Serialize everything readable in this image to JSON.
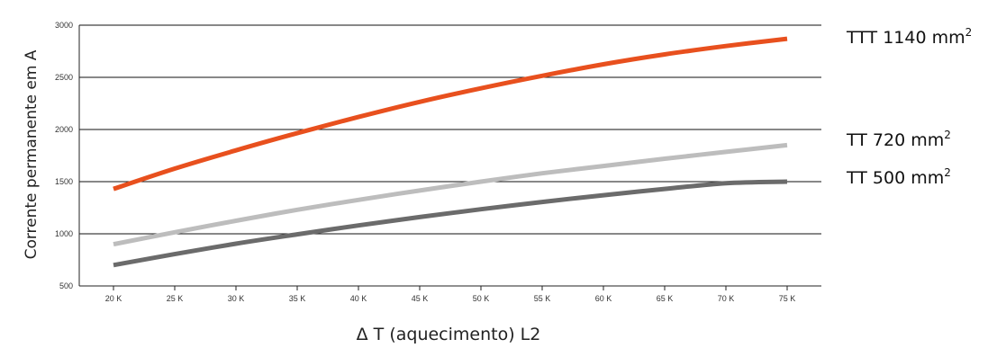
{
  "chart_data": {
    "type": "line",
    "xlabel": "Δ T (aquecimento) L2",
    "ylabel": "Corrente permanente em A",
    "ylim": [
      500,
      3000
    ],
    "xlim": [
      20,
      75
    ],
    "yticks": [
      500,
      1000,
      1500,
      2000,
      2500,
      3000
    ],
    "ytick_labels": [
      "500",
      "1000",
      "1500",
      "2000",
      "2500",
      "3000"
    ],
    "xticks": [
      20,
      25,
      30,
      35,
      40,
      45,
      50,
      55,
      60,
      65,
      70,
      75
    ],
    "xtick_labels": [
      "20 K",
      "25 K",
      "30 K",
      "35 K",
      "40 K",
      "45 K",
      "50 K",
      "55 K",
      "60 K",
      "65 K",
      "70 K",
      "75 K"
    ],
    "grid": "horizontal",
    "legend": "right, inline labels",
    "series": [
      {
        "name": "TTT 1140 mm²",
        "label_text": "TTT 1140 mm",
        "label_sup": "2",
        "color": "#e8501e",
        "x": [
          20,
          25,
          30,
          35,
          40,
          45,
          50,
          55,
          60,
          65,
          70,
          75
        ],
        "values": [
          1430,
          1625,
          1800,
          1965,
          2120,
          2265,
          2395,
          2515,
          2625,
          2720,
          2800,
          2870
        ]
      },
      {
        "name": "TT 720 mm²",
        "label_text": "TT 720 mm",
        "label_sup": "2",
        "color": "#bdbdbd",
        "x": [
          20,
          25,
          30,
          35,
          40,
          45,
          50,
          55,
          60,
          65,
          70,
          75
        ],
        "values": [
          900,
          1015,
          1125,
          1230,
          1325,
          1415,
          1500,
          1580,
          1650,
          1720,
          1785,
          1850
        ]
      },
      {
        "name": "TT 500 mm²",
        "label_text": "TT 500 mm",
        "label_sup": "2",
        "color": "#6b6b6b",
        "x": [
          20,
          25,
          30,
          35,
          40,
          45,
          50,
          55,
          60,
          65,
          70,
          75
        ],
        "values": [
          700,
          805,
          905,
          995,
          1080,
          1160,
          1235,
          1305,
          1370,
          1430,
          1485,
          1500
        ]
      }
    ]
  }
}
